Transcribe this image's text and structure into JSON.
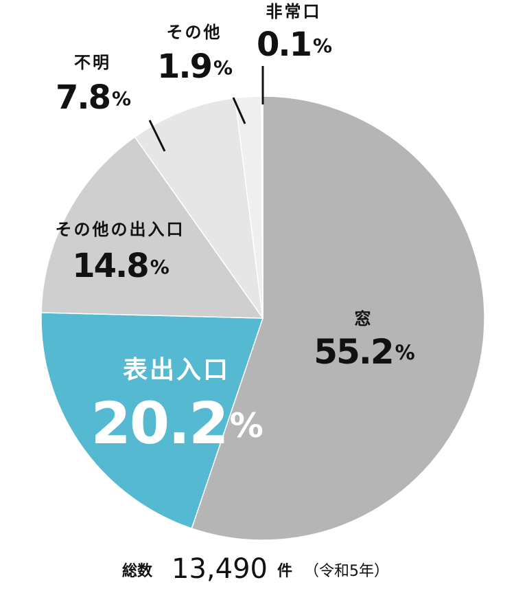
{
  "chart_data": {
    "type": "pie",
    "categories": [
      "窓",
      "表出入口",
      "その他の出入口",
      "不明",
      "その他",
      "非常口"
    ],
    "values": [
      55.2,
      20.2,
      14.8,
      7.8,
      1.9,
      0.1
    ],
    "value_labels": [
      "55.2%",
      "20.2%",
      "14.8%",
      "7.8%",
      "1.9%",
      "0.1%"
    ],
    "colors": [
      "#b5b5b5",
      "#55b9d2",
      "#cfcfcf",
      "#e6e6e6",
      "#efefef",
      "#f7f7f7"
    ],
    "total_prefix": "総数",
    "total": "13,490",
    "total_unit": "件",
    "total_note": "（令和5年）"
  }
}
